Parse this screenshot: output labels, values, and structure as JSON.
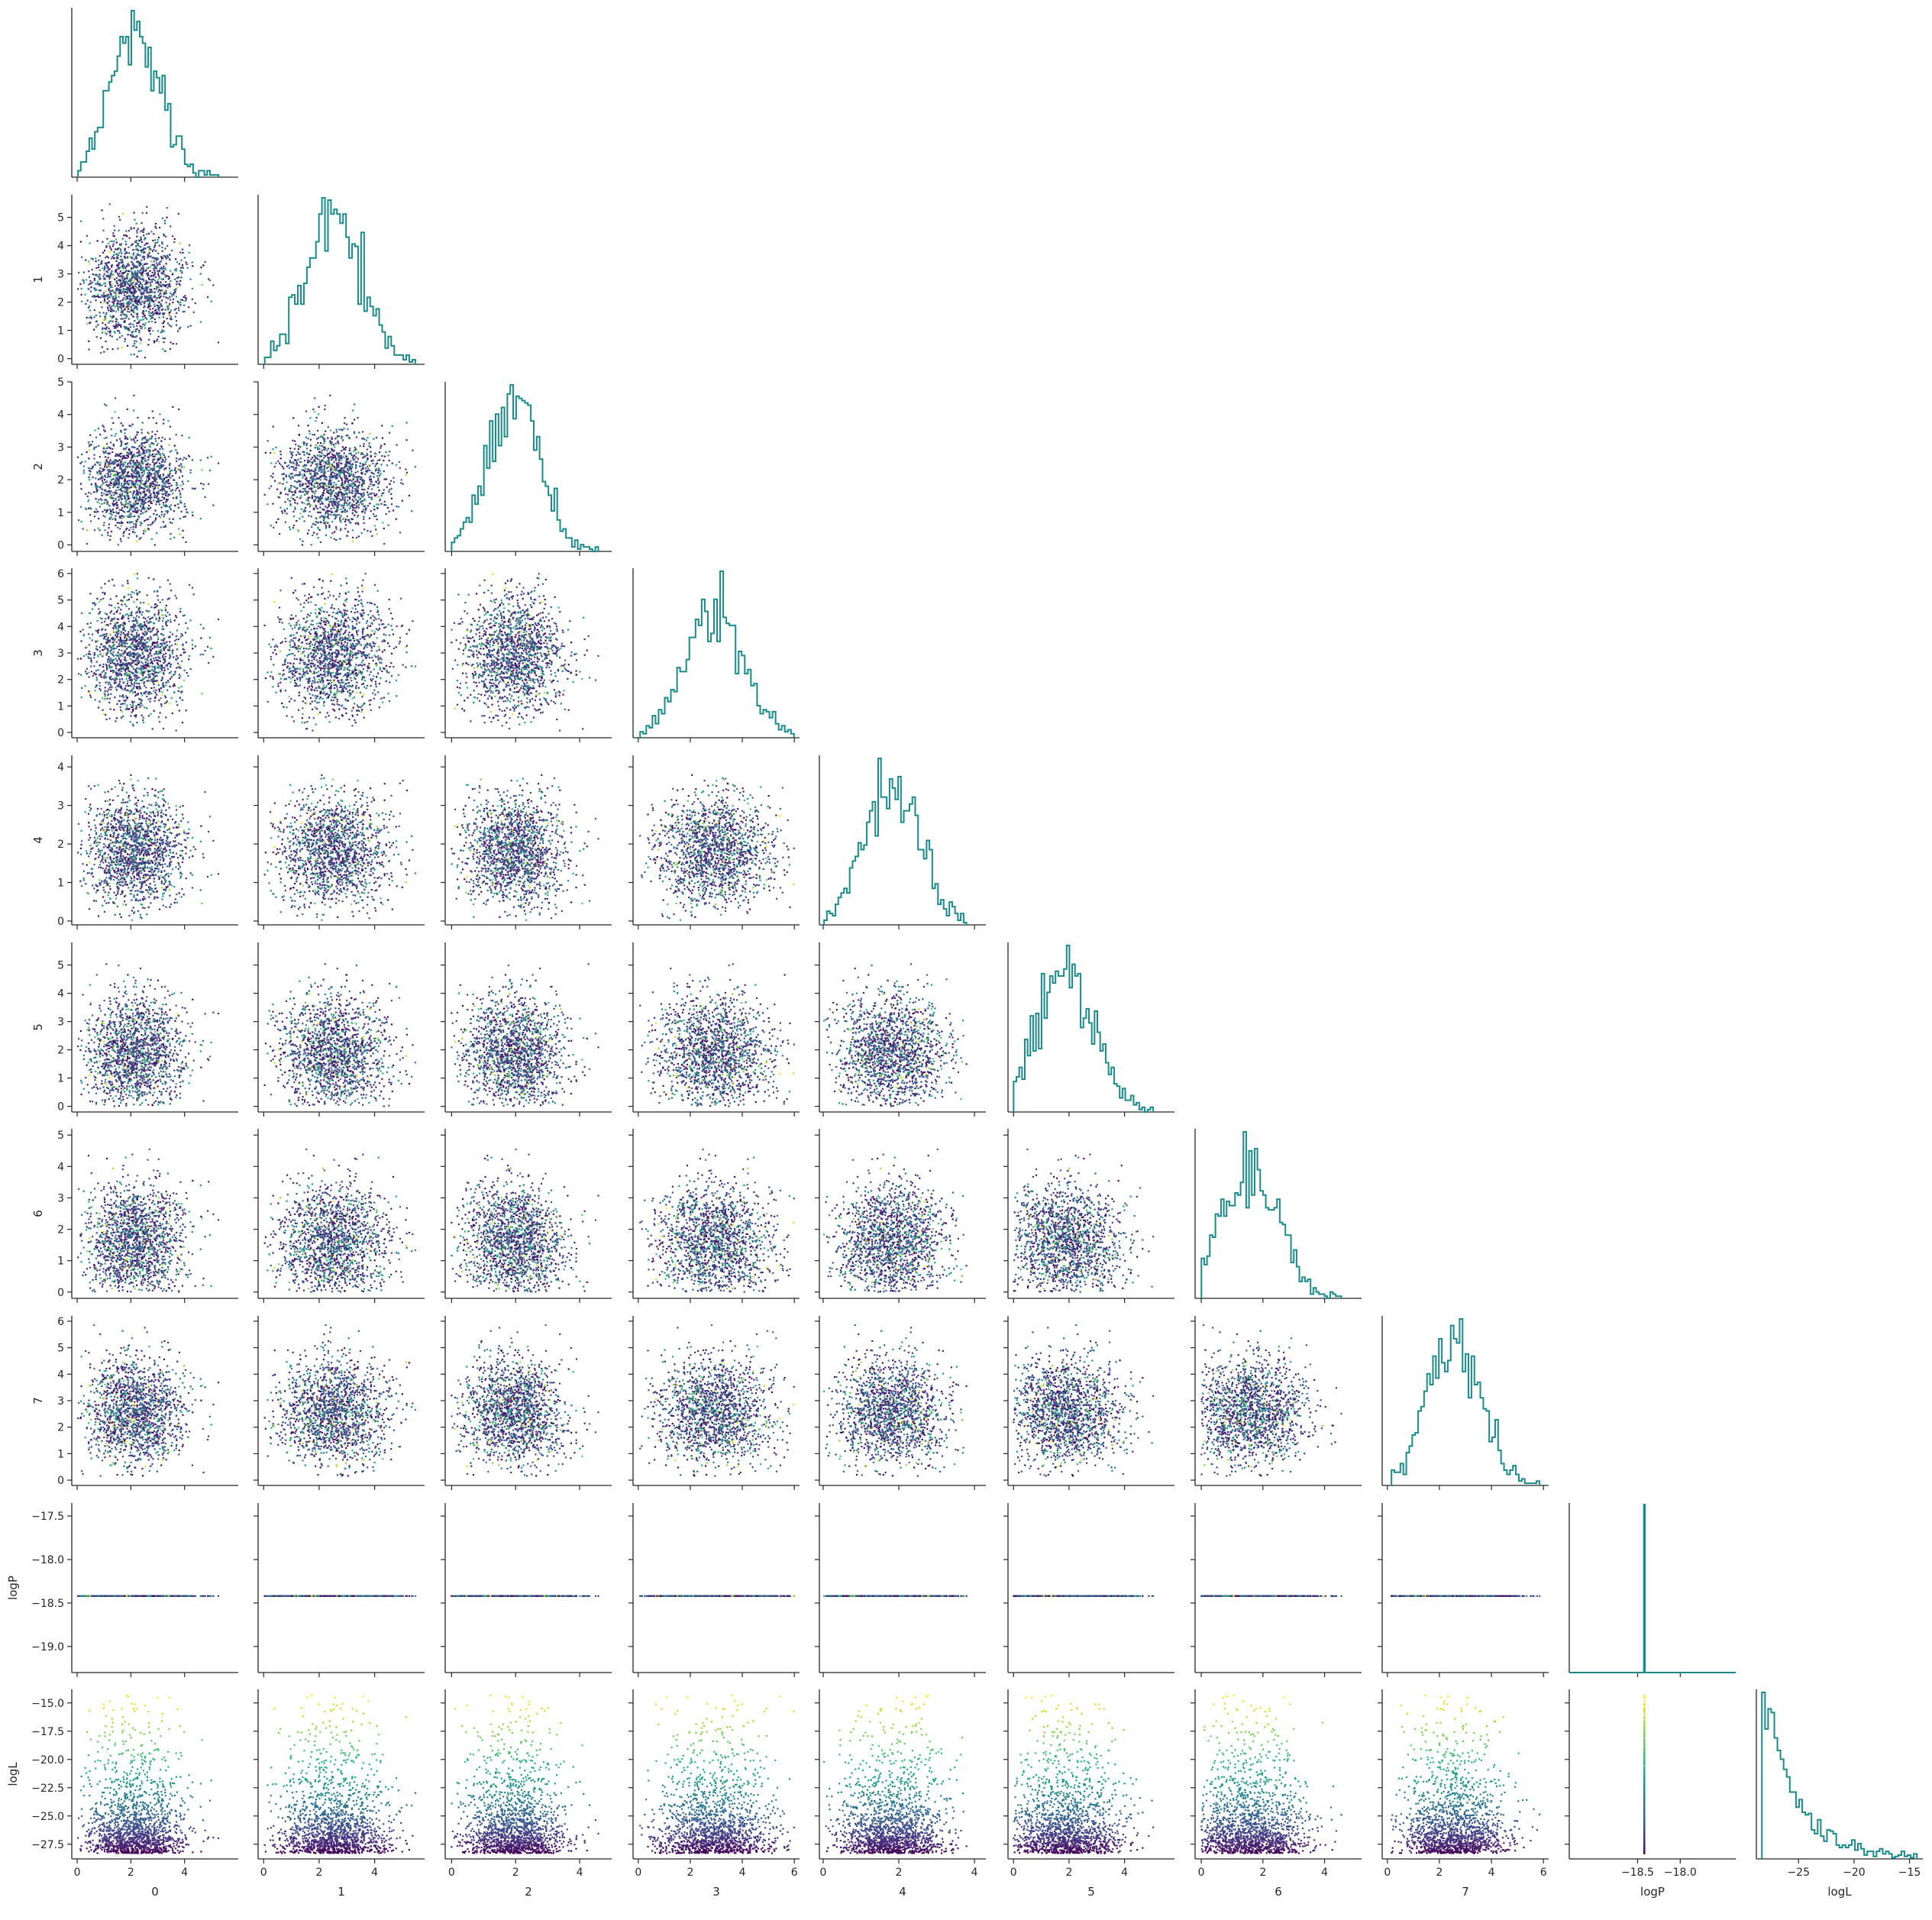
{
  "chart_data": {
    "type": "scatter",
    "subtype": "corner-pairplot",
    "title": "",
    "variables": [
      "0",
      "1",
      "2",
      "3",
      "4",
      "5",
      "6",
      "7",
      "logP",
      "logL"
    ],
    "axis_ranges": {
      "0": [
        -0.2,
        6.0
      ],
      "1": [
        -0.2,
        5.8
      ],
      "2": [
        -0.2,
        5.0
      ],
      "3": [
        -0.2,
        6.2
      ],
      "4": [
        -0.1,
        4.3
      ],
      "5": [
        -0.2,
        5.8
      ],
      "6": [
        -0.2,
        5.2
      ],
      "7": [
        -0.2,
        6.2
      ],
      "logP": [
        -19.3,
        -17.35
      ],
      "logL": [
        -28.8,
        -13.8
      ]
    },
    "ticks": {
      "0": [
        0,
        2,
        4
      ],
      "1": [
        0,
        1,
        2,
        3,
        4,
        5
      ],
      "2": [
        0,
        1,
        2,
        3,
        4,
        5
      ],
      "3": [
        0,
        1,
        2,
        3,
        4,
        5,
        6
      ],
      "4": [
        0,
        1,
        2,
        3,
        4
      ],
      "5": [
        0,
        1,
        2,
        3,
        4,
        5
      ],
      "6": [
        0,
        1,
        2,
        3,
        4,
        5
      ],
      "7": [
        0,
        1,
        2,
        3,
        4,
        5,
        6
      ],
      "logP": [
        -17.5,
        -18.0,
        -18.5,
        -19.0
      ],
      "logL": [
        -15.0,
        -17.5,
        -20.0,
        -22.5,
        -25.0,
        -27.5
      ]
    },
    "x_ticks": {
      "0": [
        0,
        2,
        4
      ],
      "1": [
        0,
        2,
        4
      ],
      "2": [
        0,
        2,
        4
      ],
      "3": [
        0,
        2,
        4,
        6
      ],
      "4": [
        0,
        2,
        4
      ],
      "5": [
        0,
        2,
        4
      ],
      "6": [
        0,
        2,
        4
      ],
      "7": [
        0,
        2,
        4,
        6
      ],
      "logP": [
        -18.5,
        -18.0
      ],
      "logL": [
        -25,
        -20,
        -15
      ]
    },
    "x_tick_labels": {
      "logP": [
        "−18.5",
        "−18.0"
      ],
      "logL": [
        "−25",
        "−20",
        "−15"
      ]
    },
    "y_tick_labels": {
      "logP": [
        "−17.5",
        "−18.0",
        "−18.5",
        "−19.0"
      ],
      "logL": [
        "−15.0",
        "−17.5",
        "−20.0",
        "−22.5",
        "−25.0",
        "−27.5"
      ]
    },
    "distributions": {
      "0": {
        "mean": 2.2,
        "sd": 0.95,
        "min": 0.0,
        "max": 5.9
      },
      "1": {
        "mean": 2.55,
        "sd": 1.0,
        "min": 0.0,
        "max": 5.6
      },
      "2": {
        "mean": 1.9,
        "sd": 0.85,
        "min": 0.0,
        "max": 4.8
      },
      "3": {
        "mean": 2.95,
        "sd": 1.1,
        "min": 0.0,
        "max": 6.0
      },
      "4": {
        "mean": 1.85,
        "sd": 0.7,
        "min": 0.0,
        "max": 4.2
      },
      "5": {
        "mean": 1.9,
        "sd": 1.0,
        "min": 0.0,
        "max": 5.6
      },
      "6": {
        "mean": 1.55,
        "sd": 0.95,
        "min": 0.0,
        "max": 5.0
      },
      "7": {
        "mean": 2.5,
        "sd": 1.05,
        "min": 0.0,
        "max": 6.0
      },
      "logP": {
        "value": -18.42
      },
      "logL": {
        "min": -28.3,
        "max": -14.3,
        "mode": -28.0
      }
    },
    "n_samples": 1500,
    "diagonal": "step-histogram",
    "lower": "scatter colored by logL",
    "colormap": "viridis",
    "hist_color": "#1a8a8a",
    "grid": false,
    "legend": "none"
  }
}
